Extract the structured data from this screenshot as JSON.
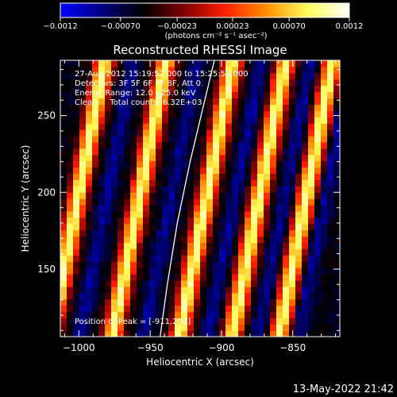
{
  "chart_data": {
    "type": "heatmap",
    "title": "Reconstructed RHESSI Image",
    "xlabel": "Heliocentric X (arcsec)",
    "ylabel": "Heliocentric Y (arcsec)",
    "xlim": [
      -1013,
      -817
    ],
    "ylim": [
      106,
      286
    ],
    "x_ticks": [
      -1000,
      -950,
      -900,
      -850
    ],
    "y_ticks": [
      150,
      200,
      250
    ],
    "x_tick_labels": [
      "−1000",
      "−950",
      "−900",
      "−850"
    ],
    "y_tick_labels": [
      "150",
      "200",
      "250"
    ],
    "colorbar": {
      "range": [
        -0.0012,
        0.0012
      ],
      "ticks": [
        -0.0012,
        -0.0007,
        -0.00023,
        0.00023,
        0.0007,
        0.0012
      ],
      "tick_labels": [
        "−0.0012",
        "−0.00070",
        "−0.00023",
        "0.00023",
        "0.00070",
        "0.0012"
      ],
      "unit_label": "(photons cm⁻² s⁻¹ asec⁻²)",
      "colormap": [
        "#0000ff",
        "#000080",
        "#000000",
        "#800000",
        "#ff2000",
        "#ff9000",
        "#ffff60",
        "#ffffff"
      ]
    },
    "stripes": {
      "tilt_x_per_y": 0.21,
      "crest_x_at_y_200": [
        -1000,
        -957,
        -910,
        -873,
        -840
      ],
      "trough_x_at_y_200": [
        -980,
        -935,
        -890,
        -855,
        -827
      ],
      "pattern_period_arcsec": 44
    },
    "limb_curve": {
      "points": [
        [
          -943,
          106
        ],
        [
          -938,
          140
        ],
        [
          -931,
          180
        ],
        [
          -922,
          220
        ],
        [
          -913,
          255
        ],
        [
          -905,
          286
        ]
      ],
      "color": "#ffffff"
    },
    "peak_position": [
      -911,
      202
    ],
    "annotations": [
      "27-Aug-2012 15:19:52.000 to 15:25:52.000",
      "Detectors: 3F 5F 6F 7F 8F, Att 0",
      "Energy Range: 12.0 - 25.0 keV",
      "Clean     Total counts: 6.32E+03",
      "Position of Peak = [-911,202]"
    ],
    "grid": false,
    "legend": "none"
  },
  "footer": {
    "timestamp": "13-May-2022 21:42"
  }
}
